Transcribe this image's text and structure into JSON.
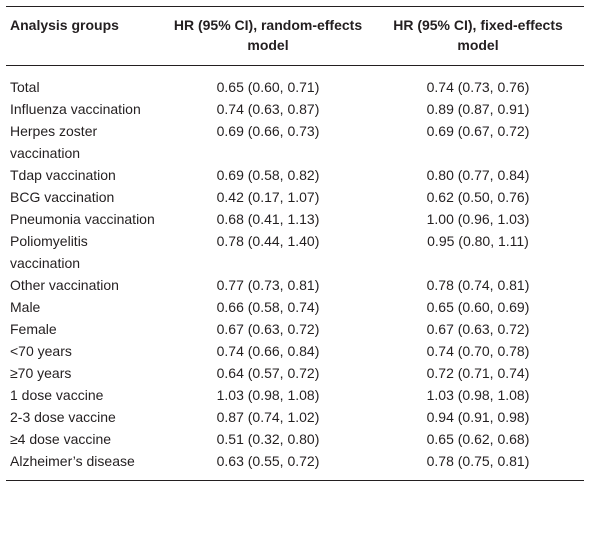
{
  "header": {
    "group": "Analysis groups",
    "random": "HR (95% CI), random-effects model",
    "fixed": "HR (95% CI), fixed-effects model"
  },
  "rows": [
    {
      "group": "Total",
      "random": "0.65 (0.60, 0.71)",
      "fixed": "0.74 (0.73, 0.76)"
    },
    {
      "group": "Influenza vaccination",
      "random": "0.74 (0.63, 0.87)",
      "fixed": "0.89 (0.87, 0.91)"
    },
    {
      "group": "Herpes zoster vaccination",
      "random": "0.69 (0.66, 0.73)",
      "fixed": "0.69 (0.67, 0.72)"
    },
    {
      "group": "Tdap vaccination",
      "random": "0.69 (0.58, 0.82)",
      "fixed": "0.80 (0.77, 0.84)"
    },
    {
      "group": "BCG vaccination",
      "random": "0.42 (0.17, 1.07)",
      "fixed": "0.62 (0.50, 0.76)"
    },
    {
      "group": "Pneumonia vaccination",
      "random": "0.68 (0.41, 1.13)",
      "fixed": "1.00 (0.96, 1.03)"
    },
    {
      "group": "Poliomyelitis vaccination",
      "random": "0.78 (0.44, 1.40)",
      "fixed": "0.95 (0.80, 1.11)"
    },
    {
      "group": "Other vaccination",
      "random": "0.77 (0.73, 0.81)",
      "fixed": "0.78 (0.74, 0.81)"
    },
    {
      "group": "Male",
      "random": "0.66 (0.58, 0.74)",
      "fixed": "0.65 (0.60, 0.69)"
    },
    {
      "group": "Female",
      "random": "0.67 (0.63, 0.72)",
      "fixed": "0.67 (0.63, 0.72)"
    },
    {
      "group": "<70 years",
      "random": "0.74 (0.66, 0.84)",
      "fixed": "0.74 (0.70, 0.78)"
    },
    {
      "group": "≥70 years",
      "random": "0.64 (0.57, 0.72)",
      "fixed": "0.72 (0.71, 0.74)"
    },
    {
      "group": "1 dose vaccine",
      "random": "1.03 (0.98, 1.08)",
      "fixed": "1.03 (0.98, 1.08)"
    },
    {
      "group": "2-3 dose vaccine",
      "random": "0.87 (0.74, 1.02)",
      "fixed": "0.94 (0.91, 0.98)"
    },
    {
      "group": "≥4 dose vaccine",
      "random": "0.51 (0.32, 0.80)",
      "fixed": "0.65 (0.62, 0.68)"
    },
    {
      "group": "Alzheimer’s disease",
      "random": "0.63 (0.55, 0.72)",
      "fixed": "0.78 (0.75, 0.81)"
    }
  ]
}
